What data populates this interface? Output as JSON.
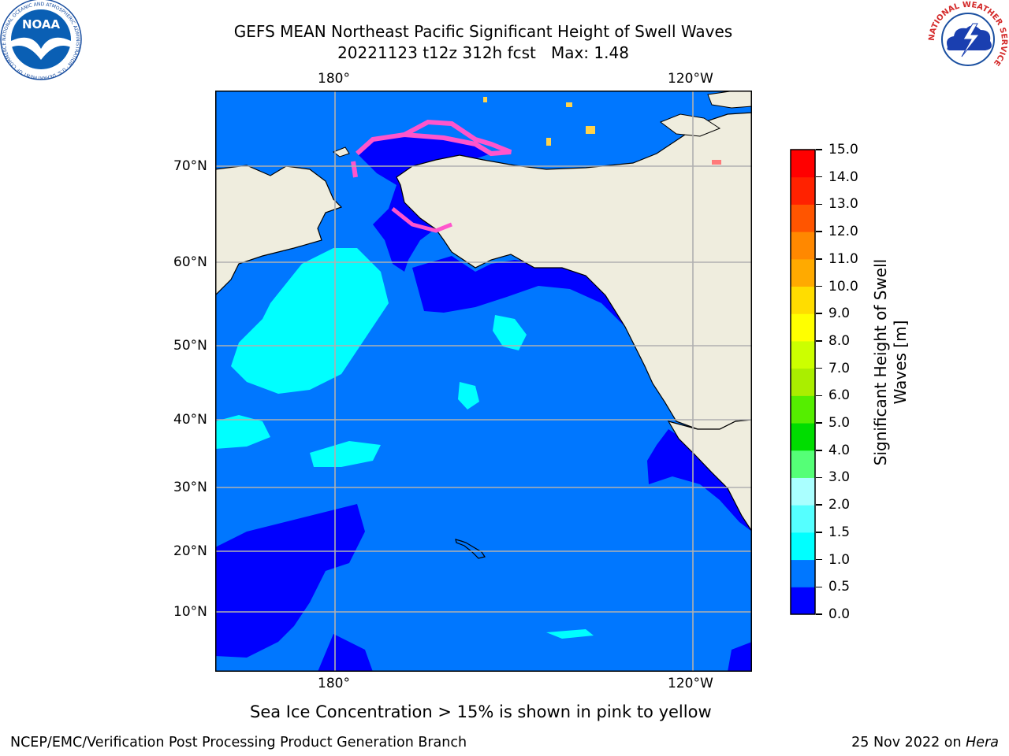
{
  "title": {
    "line1": "GEFS MEAN Northeast Pacific Significant Height of Swell Waves",
    "line2": "20221123 t12z 312h fcst   Max: 1.48"
  },
  "map": {
    "top_lon_labels": [
      "180°",
      "120°W"
    ],
    "bottom_lon_labels": [
      "180°",
      "120°W"
    ],
    "lat_labels": [
      "70°N",
      "60°N",
      "50°N",
      "40°N",
      "30°N",
      "20°N",
      "10°N"
    ],
    "colors": {
      "ocean_low": "#0000ff",
      "ocean_mid": "#0077ff",
      "ocean_high": "#00ffff",
      "land": "#efedde",
      "ice_pink": "#ff55cc",
      "ice_yellow": "#ffd24a",
      "grid": "#b0b0b0"
    }
  },
  "colorbar": {
    "label_line1": "Significant Height of Swell",
    "label_line2": "Waves [m]",
    "ticks": [
      "0.0",
      "0.5",
      "1.0",
      "1.5",
      "2.0",
      "3.0",
      "4.0",
      "5.0",
      "6.0",
      "7.0",
      "8.0",
      "9.0",
      "10.0",
      "11.0",
      "12.0",
      "13.0",
      "14.0",
      "15.0"
    ],
    "colors": [
      "#0000ff",
      "#0077ff",
      "#00ffff",
      "#55ffff",
      "#aaffff",
      "#55ff77",
      "#00dd00",
      "#55ee00",
      "#aaee00",
      "#ccff00",
      "#ffff00",
      "#ffdd00",
      "#ffaa00",
      "#ff8800",
      "#ff5500",
      "#ff2200",
      "#ff0000"
    ]
  },
  "caption": "Sea Ice Concentration > 15% is shown in pink to yellow",
  "footer": {
    "left": "NCEP/EMC/Verification Post Processing Product Generation Branch",
    "right_date": "25 Nov 2022 on ",
    "right_machine": "Hera"
  },
  "logos": {
    "noaa_text": "NOAA",
    "noaa_ring_text": "NATIONAL OCEANIC AND ATMOSPHERIC ADMINISTRATION · U.S. DEPARTMENT OF COMMERCE",
    "nws_ring_text": "NATIONAL WEATHER SERVICE"
  }
}
